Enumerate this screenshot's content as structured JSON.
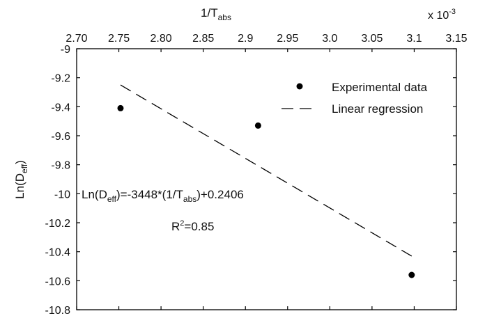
{
  "chart_data": {
    "type": "scatter",
    "xlabel": {
      "main": "1/T",
      "sub": "abs"
    },
    "x_multiplier": {
      "prefix": "x 10",
      "sup": "-3"
    },
    "ylabel": {
      "main": "Ln(D",
      "sub": "eff",
      "close": ")"
    },
    "xlim": [
      2.7,
      3.15
    ],
    "ylim": [
      -10.8,
      -9.0
    ],
    "x_ticks": [
      "2.70",
      "2.75",
      "2.80",
      "2.85",
      "2.9",
      "2.95",
      "3.0",
      "3.05",
      "3.1",
      "3.15"
    ],
    "x_tick_values": [
      2.7,
      2.75,
      2.8,
      2.85,
      2.9,
      2.95,
      3.0,
      3.05,
      3.1,
      3.15
    ],
    "y_ticks": [
      "-9",
      "-9.2",
      "-9.4",
      "-9.6",
      "-9.8",
      "-10",
      "-10.2",
      "-10.4",
      "-10.6",
      "-10.8"
    ],
    "y_tick_values": [
      -9.0,
      -9.2,
      -9.4,
      -9.6,
      -9.8,
      -10.0,
      -10.2,
      -10.4,
      -10.6,
      -10.8
    ],
    "grid": false,
    "legend_position": "top-right",
    "series": [
      {
        "name": "Experimental data",
        "kind": "points",
        "color": "#000000",
        "points": [
          {
            "x": 2.752,
            "y": -9.41
          },
          {
            "x": 2.915,
            "y": -9.53
          },
          {
            "x": 3.097,
            "y": -10.56
          }
        ]
      },
      {
        "name": "Linear regression",
        "kind": "dashed-line",
        "color": "#000000",
        "points": [
          {
            "x": 2.752,
            "y": -9.25
          },
          {
            "x": 3.097,
            "y": -10.43
          }
        ]
      }
    ],
    "annotations": {
      "equation": {
        "prefix": "Ln(D",
        "sub1": "eff",
        "mid": ")=-3448*(1/T",
        "sub2": "abs",
        "suffix": ")+0.2406"
      },
      "r2": {
        "prefix": "R",
        "sup": "2",
        "suffix": "=0.85"
      }
    }
  }
}
